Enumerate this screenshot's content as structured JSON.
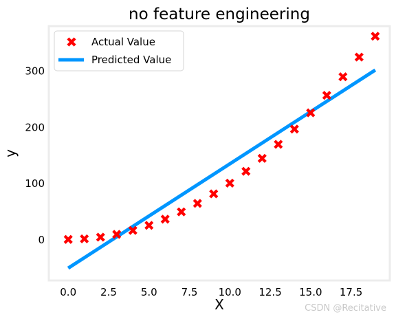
{
  "chart_data": {
    "type": "scatter",
    "title": "no feature engineering",
    "xlabel": "X",
    "ylabel": "y",
    "xlim": [
      -1.2,
      19.9
    ],
    "ylim": [
      -72,
      380
    ],
    "xticks": [
      0.0,
      2.5,
      5.0,
      7.5,
      10.0,
      12.5,
      15.0,
      17.5
    ],
    "xtick_labels": [
      "0.0",
      "2.5",
      "5.0",
      "7.5",
      "10.0",
      "12.5",
      "15.0",
      "17.5"
    ],
    "yticks": [
      0,
      100,
      200,
      300
    ],
    "ytick_labels": [
      "0",
      "100",
      "200",
      "300"
    ],
    "grid": false,
    "legend_position": "top-left",
    "series": [
      {
        "name": "Actual Value",
        "kind": "scatter",
        "marker": "X",
        "color": "#ff0000",
        "x": [
          0,
          1,
          2,
          3,
          4,
          5,
          6,
          7,
          8,
          9,
          10,
          11,
          12,
          13,
          14,
          15,
          16,
          17,
          18,
          19
        ],
        "y": [
          1,
          2,
          5,
          10,
          17,
          26,
          37,
          50,
          65,
          82,
          101,
          122,
          145,
          170,
          197,
          226,
          257,
          290,
          325,
          362
        ]
      },
      {
        "name": "Predicted Value",
        "kind": "line",
        "color": "#0096ff",
        "x": [
          0,
          19
        ],
        "y": [
          -50,
          302
        ]
      }
    ]
  },
  "watermark": "CSDN @Recitative"
}
